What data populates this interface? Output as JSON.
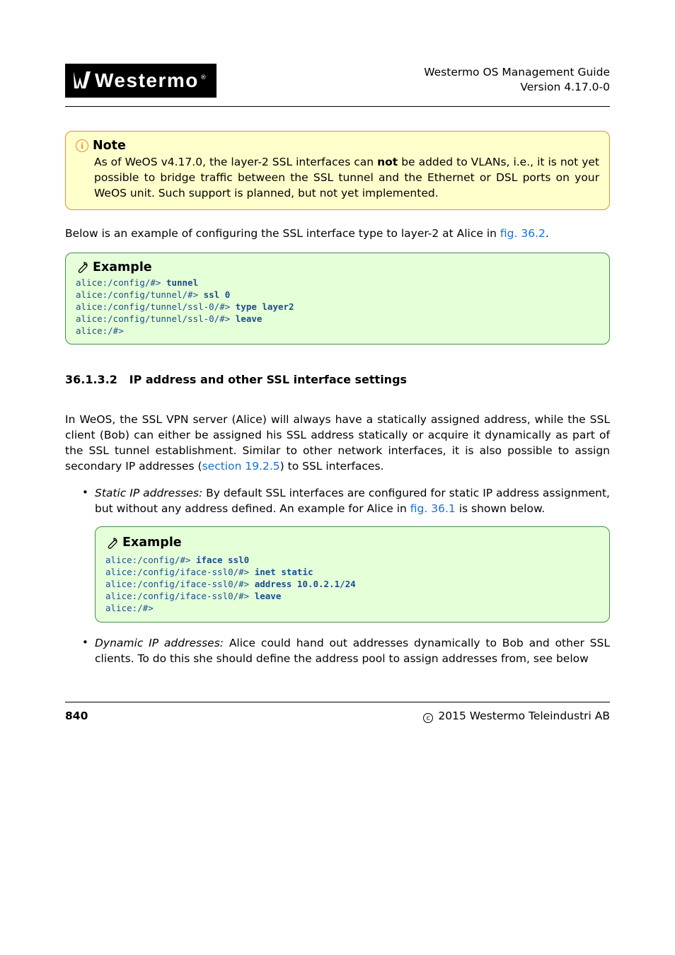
{
  "header": {
    "logo_text": "Westermo",
    "guide_title": "Westermo OS Management Guide",
    "version": "Version 4.17.0-0"
  },
  "note": {
    "heading": "Note",
    "body_pre": "As of WeOS v4.17.0, the layer-2 SSL interfaces can ",
    "body_bold": "not",
    "body_post": " be added to VLANs, i.e., it is not yet possible to bridge traffic between the SSL tunnel and the Ethernet or DSL ports on your WeOS unit. Such support is planned, but not yet implemented."
  },
  "para1": {
    "pre": "Below is an example of configuring the SSL interface type to layer-2 at Alice in ",
    "link": "fig. 36.2",
    "post": "."
  },
  "example1": {
    "heading": "Example",
    "lines": [
      {
        "prompt": "alice:/config/#> ",
        "cmd": "tunnel"
      },
      {
        "prompt": "alice:/config/tunnel/#> ",
        "cmd": "ssl 0"
      },
      {
        "prompt": "alice:/config/tunnel/ssl-0/#> ",
        "cmd": "type layer2"
      },
      {
        "prompt": "alice:/config/tunnel/ssl-0/#> ",
        "cmd": "leave"
      },
      {
        "prompt": "alice:/#>",
        "cmd": ""
      }
    ]
  },
  "subsection": {
    "number": "36.1.3.2",
    "title": "IP address and other SSL interface settings"
  },
  "para2": {
    "pre": "In WeOS, the SSL VPN server (Alice) will always have a statically assigned address, while the SSL client (Bob) can either be assigned his SSL address statically or acquire it dynamically as part of the SSL tunnel establishment. Similar to other network interfaces, it is also possible to assign secondary IP addresses (",
    "link": "section 19.2.5",
    "post": ") to SSL interfaces."
  },
  "bullet1": {
    "lead_it": "Static IP addresses:",
    "body_pre": " By default SSL interfaces are configured for static IP address assignment, but without any address defined. An example for Alice in ",
    "link": "fig. 36.1",
    "body_post": " is shown below."
  },
  "example2": {
    "heading": "Example",
    "lines": [
      {
        "prompt": "alice:/config/#> ",
        "cmd": "iface ssl0"
      },
      {
        "prompt": "alice:/config/iface-ssl0/#> ",
        "cmd": "inet static"
      },
      {
        "prompt": "alice:/config/iface-ssl0/#> ",
        "cmd": "address 10.0.2.1/24"
      },
      {
        "prompt": "alice:/config/iface-ssl0/#> ",
        "cmd": "leave"
      },
      {
        "prompt": "alice:/#>",
        "cmd": ""
      }
    ]
  },
  "bullet2": {
    "lead_it": "Dynamic IP addresses:",
    "body": " Alice could hand out addresses dynamically to Bob and other SSL clients. To do this she should define the address pool to assign addresses from, see below"
  },
  "footer": {
    "page_number": "840",
    "copyright": "2015 Westermo Teleindustri AB"
  },
  "colors": {
    "note_bg": "#ffffcc",
    "note_border": "#ee8833",
    "example_bg": "#e5ffd9",
    "example_border": "#4b8a4b",
    "code_color": "#1a4d8f",
    "link_color": "#196ed2"
  }
}
